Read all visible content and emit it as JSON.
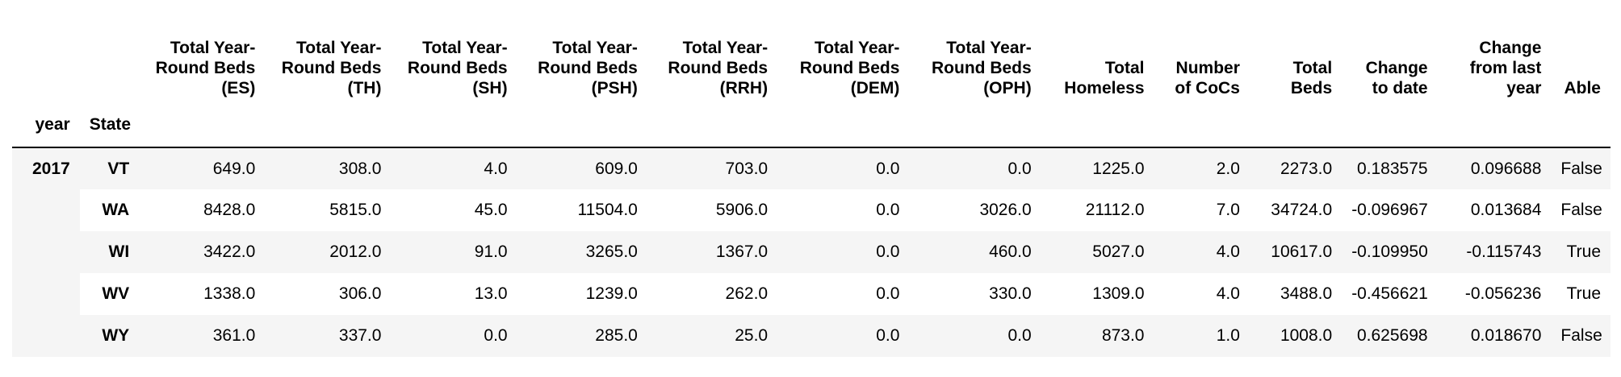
{
  "table": {
    "columns": [
      "Total Year-Round Beds (ES)",
      "Total Year-Round Beds (TH)",
      "Total Year-Round Beds (SH)",
      "Total Year-Round Beds (PSH)",
      "Total Year-Round Beds (RRH)",
      "Total Year-Round Beds (DEM)",
      "Total Year-Round Beds (OPH)",
      "Total Homeless",
      "Number of CoCs",
      "Total Beds",
      "Change to date",
      "Change from last year",
      "Able"
    ],
    "index_names": [
      "year",
      "State"
    ],
    "year": "2017",
    "rows": [
      {
        "state": "VT",
        "values": [
          "649.0",
          "308.0",
          "4.0",
          "609.0",
          "703.0",
          "0.0",
          "0.0",
          "1225.0",
          "2.0",
          "2273.0",
          "0.183575",
          "0.096688",
          "False"
        ]
      },
      {
        "state": "WA",
        "values": [
          "8428.0",
          "5815.0",
          "45.0",
          "11504.0",
          "5906.0",
          "0.0",
          "3026.0",
          "21112.0",
          "7.0",
          "34724.0",
          "-0.096967",
          "0.013684",
          "False"
        ]
      },
      {
        "state": "WI",
        "values": [
          "3422.0",
          "2012.0",
          "91.0",
          "3265.0",
          "1367.0",
          "0.0",
          "460.0",
          "5027.0",
          "4.0",
          "10617.0",
          "-0.109950",
          "-0.115743",
          "True"
        ]
      },
      {
        "state": "WV",
        "values": [
          "1338.0",
          "306.0",
          "13.0",
          "1239.0",
          "262.0",
          "0.0",
          "330.0",
          "1309.0",
          "4.0",
          "3488.0",
          "-0.456621",
          "-0.056236",
          "True"
        ]
      },
      {
        "state": "WY",
        "values": [
          "361.0",
          "337.0",
          "0.0",
          "285.0",
          "25.0",
          "0.0",
          "0.0",
          "873.0",
          "1.0",
          "1008.0",
          "0.625698",
          "0.018670",
          "False"
        ]
      }
    ]
  }
}
